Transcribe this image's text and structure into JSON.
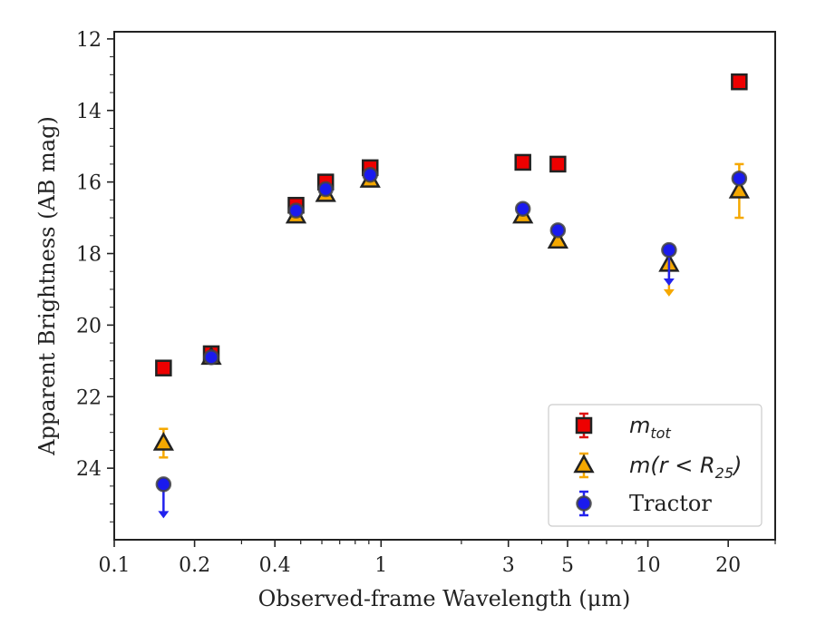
{
  "chart_data": {
    "type": "scatter",
    "xlabel": "Observed-frame Wavelength (μm)",
    "ylabel": "Apparent Brightness (AB mag)",
    "x_scale": "log",
    "y_inverted": true,
    "xlim": [
      0.1,
      30
    ],
    "ylim": [
      26,
      11.8
    ],
    "x_ticks": [
      {
        "value": 0.1,
        "label": "0.1"
      },
      {
        "value": 0.2,
        "label": "0.2"
      },
      {
        "value": 0.4,
        "label": "0.4"
      },
      {
        "value": 1,
        "label": "1"
      },
      {
        "value": 3,
        "label": "3"
      },
      {
        "value": 5,
        "label": "5"
      },
      {
        "value": 10,
        "label": "10"
      },
      {
        "value": 20,
        "label": "20"
      }
    ],
    "y_ticks": [
      {
        "value": 12,
        "label": "12"
      },
      {
        "value": 14,
        "label": "14"
      },
      {
        "value": 16,
        "label": "16"
      },
      {
        "value": 18,
        "label": "18"
      },
      {
        "value": 20,
        "label": "20"
      },
      {
        "value": 22,
        "label": "22"
      },
      {
        "value": 24,
        "label": "24"
      }
    ],
    "legend_position": "bottom-right",
    "grid": false,
    "series": [
      {
        "name": "m_tot",
        "legend_main": "m",
        "legend_sub": "tot",
        "legend_suffix": "",
        "marker": "square",
        "color": "#ee0000",
        "error_color": "#dd1111",
        "points": [
          {
            "x": 0.153,
            "y": 21.2,
            "err": 0.1
          },
          {
            "x": 0.231,
            "y": 20.8,
            "err": 0.1
          },
          {
            "x": 0.48,
            "y": 16.65,
            "err": 0.1
          },
          {
            "x": 0.62,
            "y": 16.0,
            "err": 0.1
          },
          {
            "x": 0.91,
            "y": 15.6,
            "err": 0.1
          },
          {
            "x": 3.4,
            "y": 15.45,
            "err": 0.1
          },
          {
            "x": 4.6,
            "y": 15.5,
            "err": 0.1
          },
          {
            "x": 22.0,
            "y": 13.2,
            "err": 0.1
          }
        ]
      },
      {
        "name": "m(r < R25)",
        "legend_main": "m(r < R",
        "legend_sub": "25",
        "legend_suffix": ")",
        "marker": "triangle",
        "color": "#f5a800",
        "error_color": "#f5a800",
        "points": [
          {
            "x": 0.153,
            "y": 23.3,
            "err": 0.4
          },
          {
            "x": 0.231,
            "y": 20.9,
            "err": 0.1
          },
          {
            "x": 0.48,
            "y": 16.95,
            "err": 0.1
          },
          {
            "x": 0.62,
            "y": 16.35,
            "err": 0.1
          },
          {
            "x": 0.91,
            "y": 15.95,
            "err": 0.1
          },
          {
            "x": 3.4,
            "y": 16.95,
            "err": 0.1
          },
          {
            "x": 4.6,
            "y": 17.65,
            "err": 0.1
          },
          {
            "x": 12.0,
            "y": 18.3,
            "err": 0.1,
            "upper_limit": 19.2
          },
          {
            "x": 22.0,
            "y": 16.25,
            "err": 0.75
          }
        ]
      },
      {
        "name": "Tractor",
        "legend_main": "Tractor",
        "legend_sub": "",
        "legend_suffix": "",
        "marker": "circle",
        "color": "#1a1aee",
        "error_color": "#2222ee",
        "points": [
          {
            "x": 0.153,
            "y": 24.45,
            "err": 0.1,
            "upper_limit": 25.4
          },
          {
            "x": 0.231,
            "y": 20.9,
            "err": 0.1
          },
          {
            "x": 0.48,
            "y": 16.8,
            "err": 0.1
          },
          {
            "x": 0.62,
            "y": 16.2,
            "err": 0.1
          },
          {
            "x": 0.91,
            "y": 15.8,
            "err": 0.1
          },
          {
            "x": 3.4,
            "y": 16.75,
            "err": 0.1
          },
          {
            "x": 4.6,
            "y": 17.35,
            "err": 0.1
          },
          {
            "x": 12.0,
            "y": 17.9,
            "err": 0.1,
            "upper_limit": 18.9
          },
          {
            "x": 22.0,
            "y": 15.9,
            "err": 0.1
          }
        ]
      }
    ]
  }
}
